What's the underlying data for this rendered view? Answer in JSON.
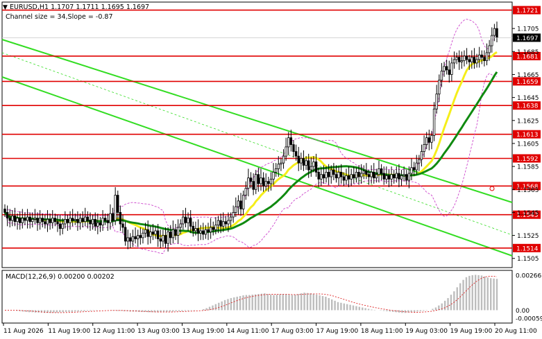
{
  "chart_header": {
    "symbol_line": "EURUSD,H1  1.1707 1.1711 1.1695 1.1697",
    "channel_info": "Channel size = 34,Slope = -0.87",
    "menu_glyph": "▼"
  },
  "colors": {
    "bull": "#000000",
    "level_line": "#e00000",
    "channel": "#33dd22",
    "ma_fast": "#f5ee1a",
    "ma_slow": "#108a10",
    "bollinger": "#cc44cc",
    "macd_hist": "#bdbdbd",
    "macd_signal": "#dd2222",
    "price_badge": "#000000"
  },
  "chart_data": {
    "type": "candlestick",
    "title": "EURUSD,H1",
    "price_axis_labels": [
      "1.1705",
      "1.1685",
      "1.1665",
      "1.1645",
      "1.1625",
      "1.1605",
      "1.1585",
      "1.1565",
      "1.1545",
      "1.1525",
      "1.1505"
    ],
    "level_labels": [
      "1.1721",
      "1.1681",
      "1.1659",
      "1.1638",
      "1.1613",
      "1.1592",
      "1.1568",
      "1.1543",
      "1.1514"
    ],
    "current_price": "1.1697",
    "time_labels": [
      "11 Aug 2026",
      "11 Aug 19:00",
      "12 Aug 11:00",
      "13 Aug 03:00",
      "13 Aug 19:00",
      "14 Aug 11:00",
      "17 Aug 03:00",
      "17 Aug 19:00",
      "18 Aug 11:00",
      "19 Aug 03:00",
      "19 Aug 19:00",
      "20 Aug 11:00"
    ],
    "ylim": [
      1.1497,
      1.1728
    ],
    "levels": [
      1.1721,
      1.1681,
      1.1659,
      1.1638,
      1.1613,
      1.1592,
      1.1568,
      1.1543,
      1.1514
    ],
    "closes": [
      1.1545,
      1.154,
      1.1538,
      1.1542,
      1.1537,
      1.154,
      1.1536,
      1.154,
      1.1538,
      1.1541,
      1.1537,
      1.1539,
      1.154,
      1.1536,
      1.154,
      1.1537,
      1.1535,
      1.1539,
      1.1536,
      1.154,
      1.1537,
      1.1535,
      1.1531,
      1.1535,
      1.1539,
      1.1536,
      1.154,
      1.1538,
      1.1539,
      1.1536,
      1.154,
      1.1537,
      1.1541,
      1.1538,
      1.1535,
      1.1539,
      1.1533,
      1.1536,
      1.1534,
      1.154,
      1.1538,
      1.1536,
      1.1544,
      1.1538,
      1.156,
      1.1545,
      1.1535,
      1.1532,
      1.152,
      1.1523,
      1.152,
      1.1524,
      1.1522,
      1.1525,
      1.1523,
      1.1527,
      1.153,
      1.1524,
      1.1528,
      1.1526,
      1.1529,
      1.1522,
      1.152,
      1.1525,
      1.1518,
      1.1528,
      1.1523,
      1.153,
      1.1525,
      1.1532,
      1.1535,
      1.1541,
      1.1536,
      1.154,
      1.1533,
      1.1529,
      1.1531,
      1.1527,
      1.1529,
      1.1526,
      1.153,
      1.1528,
      1.1532,
      1.153,
      1.1534,
      1.1538,
      1.1533,
      1.1537,
      1.1535,
      1.1538,
      1.1541,
      1.1545,
      1.155,
      1.1555,
      1.1548,
      1.156,
      1.1566,
      1.1575,
      1.1572,
      1.1565,
      1.1578,
      1.157,
      1.1575,
      1.1568,
      1.1572,
      1.157,
      1.1574,
      1.158,
      1.1583,
      1.1587,
      1.1588,
      1.1594,
      1.1602,
      1.161,
      1.1604,
      1.1598,
      1.1594,
      1.1588,
      1.1592,
      1.1586,
      1.159,
      1.1582,
      1.1585,
      1.1589,
      1.158,
      1.1574,
      1.1578,
      1.1575,
      1.158,
      1.1576,
      1.1582,
      1.1578,
      1.1575,
      1.158,
      1.1576,
      1.1573,
      1.1577,
      1.1574,
      1.1578,
      1.1575,
      1.158,
      1.1576,
      1.1579,
      1.1581,
      1.1578,
      1.1576,
      1.158,
      1.1575,
      1.1578,
      1.1583,
      1.1579,
      1.1574,
      1.1577,
      1.1574,
      1.1578,
      1.1575,
      1.1579,
      1.1574,
      1.1577,
      1.1578,
      1.1573,
      1.1579,
      1.1584,
      1.1582,
      1.1588,
      1.1591,
      1.1598,
      1.1604,
      1.161,
      1.1606,
      1.1612,
      1.1635,
      1.1648,
      1.166,
      1.1668,
      1.1672,
      1.1669,
      1.1665,
      1.1675,
      1.1678,
      1.168,
      1.1676,
      1.1677,
      1.1681,
      1.1678,
      1.1676,
      1.168,
      1.1675,
      1.1678,
      1.1682,
      1.168,
      1.1677,
      1.1684,
      1.169,
      1.1699,
      1.1705,
      1.1697
    ]
  },
  "macd": {
    "label": "MACD(12,26,9) 0.00200 0.00202",
    "axis_top": "0.00266",
    "axis_zero": "0.00",
    "axis_bottom": "-0.00059",
    "histogram": [
      0,
      0,
      0,
      0,
      -2,
      -3,
      -4,
      -5,
      -6,
      -6,
      -7,
      -7,
      -7,
      -8,
      -8,
      -8,
      -7,
      -7,
      -6,
      -6,
      -5,
      -5,
      -5,
      -4,
      -4,
      -3,
      -3,
      -2,
      -2,
      -1,
      -1,
      0,
      0,
      0,
      0,
      -1,
      -1,
      -2,
      -2,
      -3,
      -3,
      -4,
      -4,
      -4,
      -5,
      -5,
      -5,
      -6,
      -6,
      -6,
      -6,
      -5,
      -5,
      -5,
      -4,
      -4,
      -3,
      -3,
      -3,
      -2,
      -2,
      -1,
      -1,
      0,
      0,
      3,
      6,
      10,
      14,
      18,
      22,
      26,
      30,
      33,
      36,
      38,
      40,
      42,
      44,
      45,
      45,
      46,
      47,
      48,
      49,
      50,
      48,
      46,
      45,
      46,
      47,
      48,
      47,
      46,
      45,
      46,
      48,
      50,
      52,
      51,
      50,
      48,
      46,
      44,
      42,
      40,
      36,
      32,
      28,
      24,
      22,
      20,
      18,
      16,
      14,
      12,
      10,
      8,
      6,
      4,
      2,
      1,
      0,
      -1,
      -2,
      -3,
      -4,
      -5,
      -6,
      -7,
      -8,
      -8,
      -7,
      -6,
      -5,
      -4,
      -3,
      -2,
      -1,
      0,
      4,
      8,
      14,
      20,
      28,
      36,
      46,
      56,
      68,
      80,
      90,
      98,
      102,
      104,
      105,
      104,
      103,
      100,
      97,
      95,
      94,
      93
    ]
  }
}
